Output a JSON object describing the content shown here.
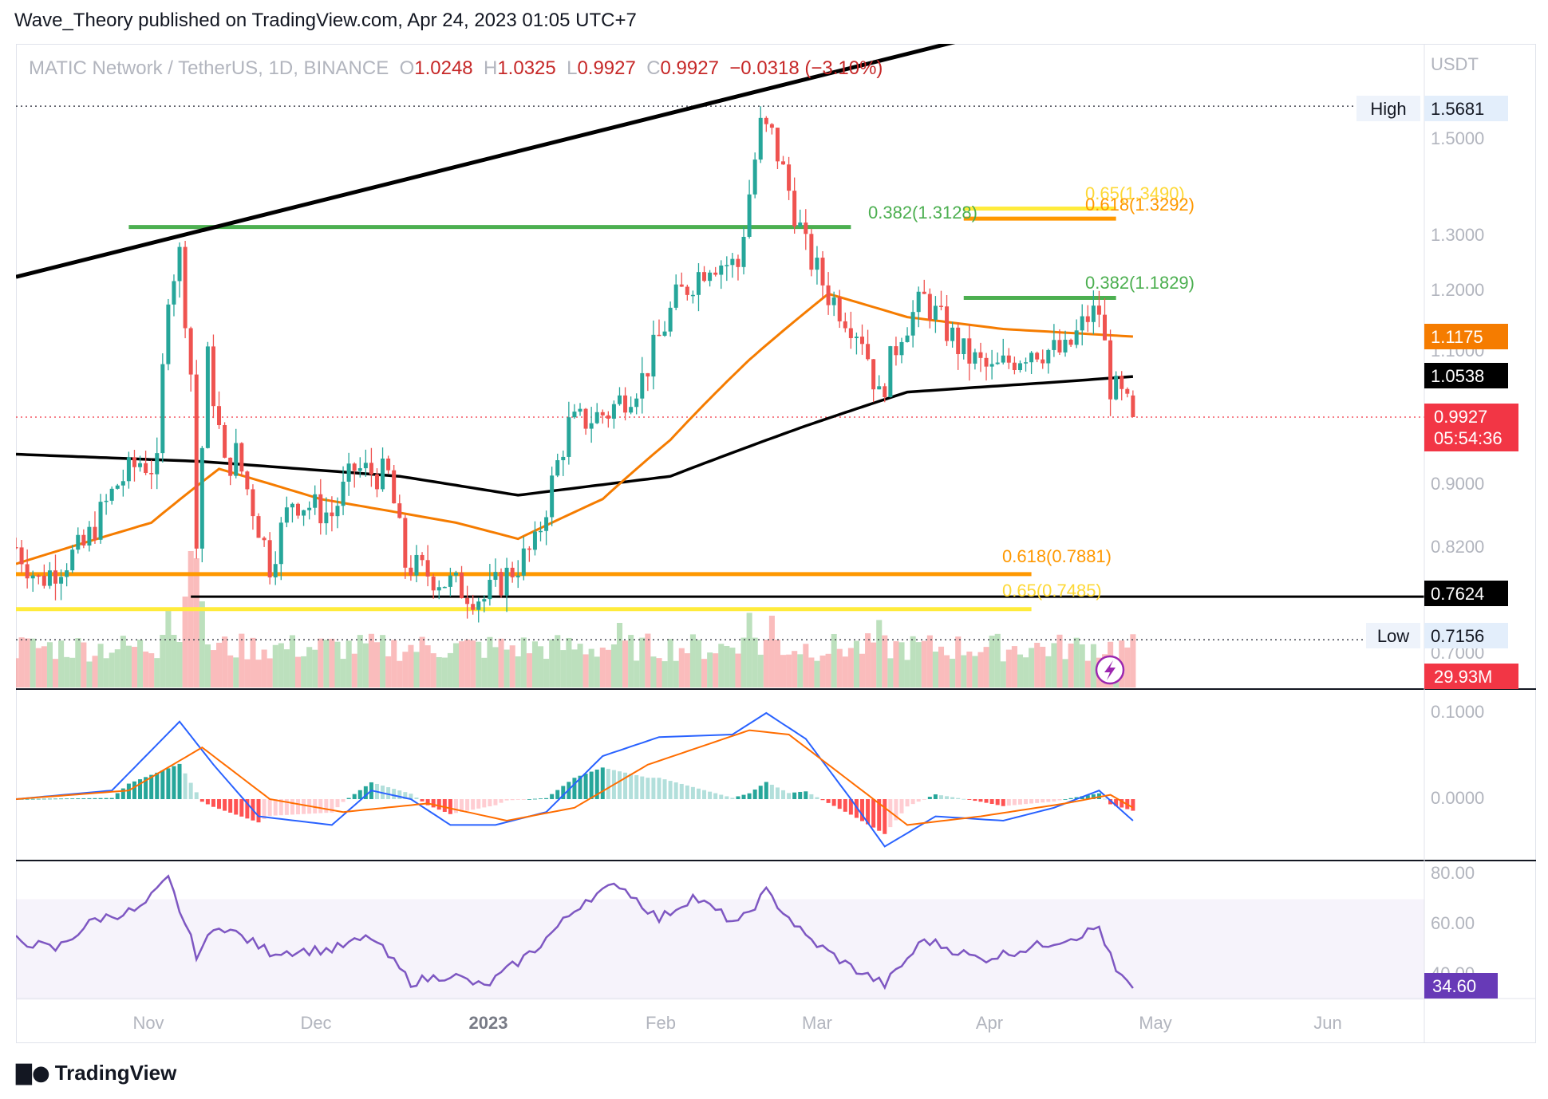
{
  "header": {
    "publisher": "Wave_Theory published on TradingView.com, Apr 24, 2023 01:05 UTC+7"
  },
  "legend": {
    "symbol": "MATIC Network / TetherUS, 1D, BINANCE",
    "open_label": "O",
    "open": "1.0248",
    "high_label": "H",
    "high": "1.0325",
    "low_label": "L",
    "low": "0.9927",
    "close_label": "C",
    "close": "0.9927",
    "change": "−0.0318 (−3.10%)"
  },
  "price_axis": {
    "currency": "USDT",
    "ticks": [
      "1.5000",
      "1.3000",
      "1.2000",
      "1.1000",
      "0.9000",
      "0.8200",
      "0.7000"
    ],
    "high_label": "High",
    "high_value": "1.5681",
    "low_label": "Low",
    "low_value": "0.7156",
    "ema50_value": "1.1175",
    "ema200_value": "1.0538",
    "last_price": "0.9927",
    "countdown": "05:54:36",
    "support_value": "0.7624",
    "volume_value": "29.93M"
  },
  "macd_axis": {
    "ticks": [
      "0.1000",
      "0.0000"
    ]
  },
  "rsi_axis": {
    "ticks": [
      "80.00",
      "60.00",
      "40.00"
    ],
    "value": "34.60"
  },
  "time_axis": {
    "ticks": [
      "Nov",
      "Dec",
      "2023",
      "Feb",
      "Mar",
      "Apr",
      "May",
      "Jun"
    ]
  },
  "fib_labels": {
    "upper_green": "0.382(1.3128)",
    "upper_yellow": "0.65(1.3490)",
    "upper_orange": "0.618(1.3292)",
    "mid_green": "0.382(1.1829)",
    "lower_orange": "0.618(0.7881)",
    "lower_yellow": "0.65(0.7485)"
  },
  "footer": {
    "brand": "TradingView"
  },
  "colors": {
    "up": "#26a69a",
    "down": "#ef5350",
    "ema50": "#f57c00",
    "ema200": "#000000",
    "fib_green": "#4caf50",
    "fib_orange": "#ff9800",
    "fib_yellow": "#ffeb3b",
    "macd": "#2962ff",
    "signal": "#ff6d00",
    "rsi": "#7e57c2"
  },
  "chart_data": [
    {
      "type": "candlestick",
      "title": "MATIC Network / TetherUS, 1D, BINANCE",
      "x_range": [
        "2022-10-08",
        "2023-06-30"
      ],
      "y_range": [
        0.7,
        1.6
      ],
      "y_scale": "log",
      "anchors": [
        {
          "date": "2022-10-08",
          "close": 0.82
        },
        {
          "date": "2022-10-12",
          "close": 0.78
        },
        {
          "date": "2022-10-20",
          "close": 0.82
        },
        {
          "date": "2022-10-26",
          "close": 0.9
        },
        {
          "date": "2022-10-30",
          "close": 0.93
        },
        {
          "date": "2022-11-02",
          "close": 0.92
        },
        {
          "date": "2022-11-04",
          "close": 1.2
        },
        {
          "date": "2022-11-06",
          "close": 1.26
        },
        {
          "date": "2022-11-08",
          "close": 1.06
        },
        {
          "date": "2022-11-09",
          "close": 0.82
        },
        {
          "date": "2022-11-11",
          "close": 1.08
        },
        {
          "date": "2022-11-14",
          "close": 0.92
        },
        {
          "date": "2022-11-16",
          "close": 0.94
        },
        {
          "date": "2022-11-22",
          "close": 0.8
        },
        {
          "date": "2022-11-26",
          "close": 0.88
        },
        {
          "date": "2022-12-03",
          "close": 0.86
        },
        {
          "date": "2022-12-07",
          "close": 0.92
        },
        {
          "date": "2022-12-13",
          "close": 0.91
        },
        {
          "date": "2022-12-16",
          "close": 0.8
        },
        {
          "date": "2022-12-23",
          "close": 0.78
        },
        {
          "date": "2022-12-30",
          "close": 0.76
        },
        {
          "date": "2023-01-08",
          "close": 0.82
        },
        {
          "date": "2023-01-14",
          "close": 0.98
        },
        {
          "date": "2023-01-21",
          "close": 1.0
        },
        {
          "date": "2023-01-27",
          "close": 1.05
        },
        {
          "date": "2023-02-02",
          "close": 1.18
        },
        {
          "date": "2023-02-08",
          "close": 1.25
        },
        {
          "date": "2023-02-13",
          "close": 1.24
        },
        {
          "date": "2023-02-17",
          "close": 1.52
        },
        {
          "date": "2023-02-19",
          "close": 1.5
        },
        {
          "date": "2023-02-25",
          "close": 1.27
        },
        {
          "date": "2023-03-01",
          "close": 1.19
        },
        {
          "date": "2023-03-07",
          "close": 1.12
        },
        {
          "date": "2023-03-10",
          "close": 1.02
        },
        {
          "date": "2023-03-14",
          "close": 1.13
        },
        {
          "date": "2023-03-18",
          "close": 1.18
        },
        {
          "date": "2023-03-25",
          "close": 1.09
        },
        {
          "date": "2023-03-30",
          "close": 1.06
        },
        {
          "date": "2023-04-06",
          "close": 1.1
        },
        {
          "date": "2023-04-12",
          "close": 1.09
        },
        {
          "date": "2023-04-16",
          "close": 1.15
        },
        {
          "date": "2023-04-18",
          "close": 1.16
        },
        {
          "date": "2023-04-20",
          "close": 1.04
        },
        {
          "date": "2023-04-22",
          "close": 1.02
        },
        {
          "date": "2023-04-24",
          "close": 0.9927
        }
      ],
      "ema50": [
        {
          "date": "2022-10-08",
          "value": 0.8
        },
        {
          "date": "2022-11-01",
          "value": 0.85
        },
        {
          "date": "2022-11-13",
          "value": 0.92
        },
        {
          "date": "2022-12-01",
          "value": 0.88
        },
        {
          "date": "2022-12-25",
          "value": 0.85
        },
        {
          "date": "2023-01-05",
          "value": 0.83
        },
        {
          "date": "2023-01-20",
          "value": 0.88
        },
        {
          "date": "2023-02-01",
          "value": 0.96
        },
        {
          "date": "2023-02-15",
          "value": 1.08
        },
        {
          "date": "2023-03-01",
          "value": 1.19
        },
        {
          "date": "2023-03-15",
          "value": 1.15
        },
        {
          "date": "2023-04-01",
          "value": 1.13
        },
        {
          "date": "2023-04-24",
          "value": 1.1175
        }
      ],
      "ema200": [
        {
          "date": "2022-10-08",
          "value": 0.94
        },
        {
          "date": "2022-11-10",
          "value": 0.93
        },
        {
          "date": "2022-12-15",
          "value": 0.91
        },
        {
          "date": "2023-01-05",
          "value": 0.885
        },
        {
          "date": "2023-02-01",
          "value": 0.91
        },
        {
          "date": "2023-02-25",
          "value": 0.98
        },
        {
          "date": "2023-03-15",
          "value": 1.03
        },
        {
          "date": "2023-04-10",
          "value": 1.045
        },
        {
          "date": "2023-04-24",
          "value": 1.0538
        }
      ],
      "levels": [
        {
          "name": "0.382(1.3128)",
          "value": 1.3128,
          "from": "2022-10-28",
          "to": "2023-03-05",
          "color": "green"
        },
        {
          "name": "0.65(1.3490)",
          "value": 1.349,
          "from": "2023-03-25",
          "to": "2023-04-21",
          "color": "yellow"
        },
        {
          "name": "0.618(1.3292)",
          "value": 1.3292,
          "from": "2023-03-25",
          "to": "2023-04-21",
          "color": "orange"
        },
        {
          "name": "0.382(1.1829)",
          "value": 1.1829,
          "from": "2023-03-25",
          "to": "2023-04-21",
          "color": "green"
        },
        {
          "name": "0.618(0.7881)",
          "value": 0.7881,
          "from": "2022-10-08",
          "to": "2023-04-06",
          "color": "orange"
        },
        {
          "name": "0.65(0.7485)",
          "value": 0.7485,
          "from": "2022-10-08",
          "to": "2023-04-06",
          "color": "yellow"
        },
        {
          "name": "0.7624",
          "value": 0.7624,
          "from": "2022-11-08",
          "to": "2023-06-30",
          "color": "black"
        }
      ],
      "trendline": [
        {
          "date": "2022-10-08",
          "value": 1.22
        },
        {
          "date": "2023-04-08",
          "value": 1.78
        }
      ],
      "high": 1.5681,
      "low": 0.7156,
      "last": 0.9927
    },
    {
      "type": "bar",
      "title": "Volume",
      "last": "29.93M",
      "peaks": [
        {
          "date": "2022-11-04",
          "relative": 0.55
        },
        {
          "date": "2022-11-08",
          "relative": 0.95
        },
        {
          "date": "2022-11-09",
          "relative": 0.9
        },
        {
          "date": "2023-01-23",
          "relative": 0.45
        },
        {
          "date": "2023-02-15",
          "relative": 0.52
        },
        {
          "date": "2023-02-19",
          "relative": 0.5
        },
        {
          "date": "2023-03-10",
          "relative": 0.47
        }
      ]
    },
    {
      "type": "line",
      "title": "MACD",
      "y_range": [
        -0.06,
        0.12
      ],
      "macd": [
        {
          "date": "2022-10-08",
          "value": 0.0
        },
        {
          "date": "2022-10-25",
          "value": 0.01
        },
        {
          "date": "2022-11-06",
          "value": 0.09
        },
        {
          "date": "2022-11-12",
          "value": 0.04
        },
        {
          "date": "2022-11-20",
          "value": -0.02
        },
        {
          "date": "2022-12-03",
          "value": -0.03
        },
        {
          "date": "2022-12-10",
          "value": 0.01
        },
        {
          "date": "2022-12-17",
          "value": 0.0
        },
        {
          "date": "2022-12-24",
          "value": -0.03
        },
        {
          "date": "2023-01-01",
          "value": -0.03
        },
        {
          "date": "2023-01-10",
          "value": -0.015
        },
        {
          "date": "2023-01-20",
          "value": 0.05
        },
        {
          "date": "2023-01-30",
          "value": 0.072
        },
        {
          "date": "2023-02-12",
          "value": 0.075
        },
        {
          "date": "2023-02-18",
          "value": 0.1
        },
        {
          "date": "2023-02-25",
          "value": 0.07
        },
        {
          "date": "2023-03-05",
          "value": 0.0
        },
        {
          "date": "2023-03-11",
          "value": -0.055
        },
        {
          "date": "2023-03-20",
          "value": -0.02
        },
        {
          "date": "2023-04-01",
          "value": -0.025
        },
        {
          "date": "2023-04-10",
          "value": -0.01
        },
        {
          "date": "2023-04-18",
          "value": 0.01
        },
        {
          "date": "2023-04-24",
          "value": -0.025
        }
      ],
      "signal": [
        {
          "date": "2022-10-08",
          "value": 0.0
        },
        {
          "date": "2022-10-28",
          "value": 0.01
        },
        {
          "date": "2022-11-10",
          "value": 0.06
        },
        {
          "date": "2022-11-22",
          "value": 0.0
        },
        {
          "date": "2022-12-05",
          "value": -0.015
        },
        {
          "date": "2022-12-20",
          "value": -0.005
        },
        {
          "date": "2023-01-03",
          "value": -0.025
        },
        {
          "date": "2023-01-15",
          "value": -0.01
        },
        {
          "date": "2023-01-28",
          "value": 0.04
        },
        {
          "date": "2023-02-15",
          "value": 0.08
        },
        {
          "date": "2023-02-22",
          "value": 0.075
        },
        {
          "date": "2023-03-05",
          "value": 0.02
        },
        {
          "date": "2023-03-15",
          "value": -0.03
        },
        {
          "date": "2023-03-28",
          "value": -0.02
        },
        {
          "date": "2023-04-12",
          "value": -0.005
        },
        {
          "date": "2023-04-20",
          "value": 0.005
        },
        {
          "date": "2023-04-24",
          "value": -0.01
        }
      ]
    },
    {
      "type": "line",
      "title": "RSI",
      "y_range": [
        30,
        82
      ],
      "band": [
        30,
        70
      ],
      "last": 34.6,
      "values": [
        {
          "date": "2022-10-08",
          "value": 54
        },
        {
          "date": "2022-10-15",
          "value": 50
        },
        {
          "date": "2022-10-22",
          "value": 62
        },
        {
          "date": "2022-10-30",
          "value": 66
        },
        {
          "date": "2022-11-04",
          "value": 78
        },
        {
          "date": "2022-11-09",
          "value": 48
        },
        {
          "date": "2022-11-13",
          "value": 60
        },
        {
          "date": "2022-11-22",
          "value": 49
        },
        {
          "date": "2022-12-03",
          "value": 50
        },
        {
          "date": "2022-12-10",
          "value": 55
        },
        {
          "date": "2022-12-17",
          "value": 37
        },
        {
          "date": "2022-12-24",
          "value": 40
        },
        {
          "date": "2022-12-30",
          "value": 35
        },
        {
          "date": "2023-01-08",
          "value": 50
        },
        {
          "date": "2023-01-17",
          "value": 70
        },
        {
          "date": "2023-01-23",
          "value": 76
        },
        {
          "date": "2023-01-30",
          "value": 62
        },
        {
          "date": "2023-02-05",
          "value": 71
        },
        {
          "date": "2023-02-13",
          "value": 60
        },
        {
          "date": "2023-02-18",
          "value": 73
        },
        {
          "date": "2023-02-25",
          "value": 55
        },
        {
          "date": "2023-03-05",
          "value": 43
        },
        {
          "date": "2023-03-11",
          "value": 36
        },
        {
          "date": "2023-03-18",
          "value": 54
        },
        {
          "date": "2023-03-28",
          "value": 46
        },
        {
          "date": "2023-04-08",
          "value": 52
        },
        {
          "date": "2023-04-15",
          "value": 56
        },
        {
          "date": "2023-04-18",
          "value": 59
        },
        {
          "date": "2023-04-21",
          "value": 41
        },
        {
          "date": "2023-04-24",
          "value": 34.6
        }
      ]
    }
  ]
}
